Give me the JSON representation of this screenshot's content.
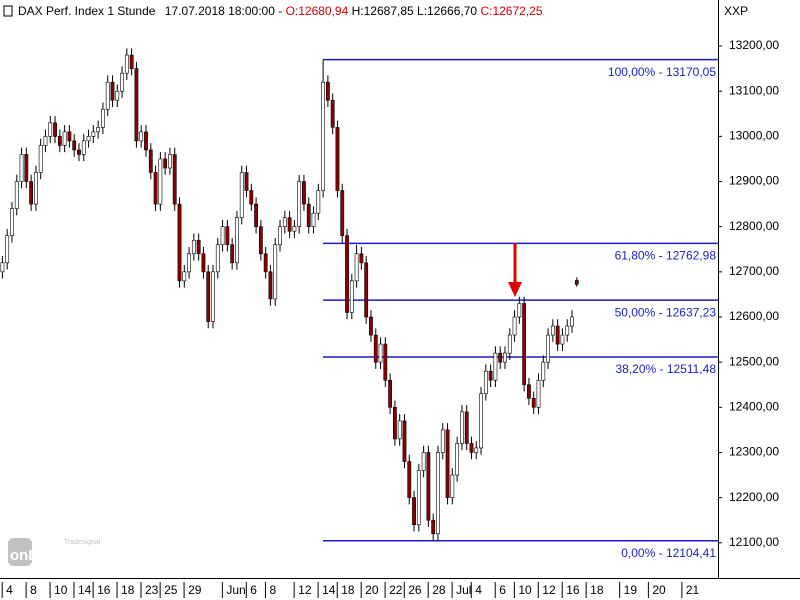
{
  "chart_data": {
    "type": "candlestick",
    "header": {
      "name": "DAX Perf. Index 1 Stunde",
      "datetime": "17.07.2018 18:00:00",
      "separator": "-",
      "open": "O:12680,94",
      "high": "H:12687,85",
      "low": "L:12666,70",
      "close": "C:12672,25"
    },
    "symbol": "XXP",
    "logo": {
      "brand": "Tradesignal",
      "text": "onLine"
    },
    "up_color": "#ffffff",
    "down_color": "#8b0000",
    "fib_color": "#1c1cc8",
    "categories": [
      null,
      "4",
      null,
      null,
      null,
      null,
      "8",
      null,
      null,
      null,
      null,
      "10",
      null,
      null,
      null,
      null,
      "14",
      null,
      null,
      null,
      "16",
      null,
      null,
      null,
      null,
      "18",
      null,
      null,
      null,
      null,
      "23",
      null,
      null,
      null,
      "25",
      null,
      null,
      null,
      null,
      "29",
      null,
      null,
      null,
      null,
      null,
      null,
      null,
      "Jun",
      null,
      null,
      null,
      null,
      "6",
      null,
      null,
      null,
      "8",
      null,
      null,
      null,
      null,
      null,
      "12",
      null,
      null,
      null,
      null,
      "14",
      null,
      null,
      null,
      "18",
      null,
      null,
      null,
      null,
      "20",
      null,
      null,
      null,
      null,
      "22",
      null,
      null,
      null,
      "26",
      null,
      null,
      null,
      null,
      "28",
      null,
      null,
      null,
      null,
      "Jul",
      null,
      null,
      null,
      "4",
      null,
      null,
      null,
      null,
      "6",
      null,
      null,
      null,
      "10",
      null,
      null,
      null,
      null,
      "12",
      null,
      null,
      null,
      null,
      "16",
      null,
      null,
      null,
      null,
      "18",
      null,
      null,
      null,
      null,
      null,
      null,
      "19",
      null,
      null,
      null,
      null,
      null,
      "20",
      null,
      null,
      null,
      null,
      null,
      null,
      "21",
      null,
      null,
      null,
      null,
      null,
      null
    ],
    "ohlc": [
      [
        12700,
        12735,
        12685,
        12720
      ],
      [
        12720,
        12795,
        12705,
        12780
      ],
      [
        12780,
        12855,
        12765,
        12840
      ],
      [
        12840,
        12915,
        12825,
        12900
      ],
      [
        12900,
        12975,
        12885,
        12960
      ],
      [
        12960,
        12975,
        12885,
        12900
      ],
      [
        12900,
        12915,
        12835,
        12850
      ],
      [
        12850,
        12935,
        12835,
        12920
      ],
      [
        12920,
        12995,
        12905,
        12980
      ],
      [
        12980,
        13015,
        12965,
        13000
      ],
      [
        13000,
        13045,
        12985,
        13030
      ],
      [
        13030,
        13045,
        12985,
        13000
      ],
      [
        13000,
        13015,
        12965,
        12980
      ],
      [
        12980,
        13025,
        12965,
        13010
      ],
      [
        13010,
        13025,
        12975,
        12990
      ],
      [
        12990,
        13005,
        12955,
        12970
      ],
      [
        12970,
        12985,
        12945,
        12960
      ],
      [
        12960,
        13005,
        12945,
        12990
      ],
      [
        12990,
        13015,
        12975,
        13000
      ],
      [
        13000,
        13025,
        12985,
        13010
      ],
      [
        13010,
        13035,
        12995,
        13020
      ],
      [
        13020,
        13075,
        13005,
        13060
      ],
      [
        13060,
        13135,
        13045,
        13120
      ],
      [
        13120,
        13135,
        13065,
        13080
      ],
      [
        13080,
        13115,
        13065,
        13100
      ],
      [
        13100,
        13155,
        13085,
        13140
      ],
      [
        13140,
        13195,
        13125,
        13180
      ],
      [
        13180,
        13195,
        13135,
        13150
      ],
      [
        13150,
        13165,
        12975,
        12990
      ],
      [
        12990,
        13025,
        12975,
        13010
      ],
      [
        13010,
        13025,
        12955,
        12970
      ],
      [
        12970,
        12985,
        12905,
        12920
      ],
      [
        12920,
        12935,
        12835,
        12850
      ],
      [
        12850,
        12965,
        12835,
        12950
      ],
      [
        12950,
        12965,
        12915,
        12930
      ],
      [
        12930,
        12975,
        12915,
        12960
      ],
      [
        12960,
        12975,
        12835,
        12850
      ],
      [
        12850,
        12865,
        12665,
        12680
      ],
      [
        12680,
        12715,
        12665,
        12700
      ],
      [
        12700,
        12755,
        12685,
        12740
      ],
      [
        12740,
        12785,
        12725,
        12770
      ],
      [
        12770,
        12785,
        12725,
        12740
      ],
      [
        12740,
        12755,
        12685,
        12700
      ],
      [
        12700,
        12715,
        12575,
        12590
      ],
      [
        12590,
        12715,
        12575,
        12700
      ],
      [
        12700,
        12775,
        12685,
        12760
      ],
      [
        12760,
        12815,
        12745,
        12800
      ],
      [
        12800,
        12815,
        12745,
        12760
      ],
      [
        12760,
        12775,
        12705,
        12720
      ],
      [
        12720,
        12835,
        12705,
        12820
      ],
      [
        12820,
        12935,
        12805,
        12920
      ],
      [
        12920,
        12935,
        12865,
        12880
      ],
      [
        12880,
        12895,
        12835,
        12850
      ],
      [
        12850,
        12865,
        12785,
        12800
      ],
      [
        12800,
        12815,
        12725,
        12740
      ],
      [
        12740,
        12755,
        12685,
        12700
      ],
      [
        12700,
        12715,
        12625,
        12640
      ],
      [
        12640,
        12775,
        12625,
        12760
      ],
      [
        12760,
        12815,
        12745,
        12800
      ],
      [
        12800,
        12835,
        12785,
        12820
      ],
      [
        12820,
        12835,
        12775,
        12790
      ],
      [
        12790,
        12815,
        12775,
        12800
      ],
      [
        12800,
        12915,
        12785,
        12900
      ],
      [
        12900,
        12915,
        12835,
        12850
      ],
      [
        12850,
        12865,
        12785,
        12800
      ],
      [
        12800,
        12845,
        12785,
        12830
      ],
      [
        12830,
        12895,
        12815,
        12880
      ],
      [
        12880,
        13170,
        12865,
        13120
      ],
      [
        13120,
        13135,
        13065,
        13080
      ],
      [
        13080,
        13095,
        13005,
        13020
      ],
      [
        13020,
        13035,
        12865,
        12880
      ],
      [
        12880,
        12895,
        12765,
        12780
      ],
      [
        12780,
        12795,
        12595,
        12610
      ],
      [
        12610,
        12695,
        12595,
        12680
      ],
      [
        12680,
        12760,
        12665,
        12740
      ],
      [
        12740,
        12755,
        12705,
        12720
      ],
      [
        12720,
        12735,
        12585,
        12600
      ],
      [
        12600,
        12615,
        12545,
        12560
      ],
      [
        12560,
        12575,
        12485,
        12500
      ],
      [
        12500,
        12555,
        12485,
        12540
      ],
      [
        12540,
        12555,
        12445,
        12460
      ],
      [
        12460,
        12475,
        12385,
        12400
      ],
      [
        12400,
        12415,
        12315,
        12330
      ],
      [
        12330,
        12385,
        12315,
        12370
      ],
      [
        12370,
        12385,
        12265,
        12280
      ],
      [
        12280,
        12295,
        12185,
        12200
      ],
      [
        12200,
        12215,
        12125,
        12140
      ],
      [
        12140,
        12275,
        12125,
        12260
      ],
      [
        12260,
        12315,
        12245,
        12300
      ],
      [
        12300,
        12315,
        12135,
        12150
      ],
      [
        12150,
        12165,
        12105,
        12120
      ],
      [
        12120,
        12315,
        12105,
        12300
      ],
      [
        12300,
        12365,
        12285,
        12350
      ],
      [
        12350,
        12365,
        12185,
        12200
      ],
      [
        12200,
        12265,
        12185,
        12250
      ],
      [
        12250,
        12335,
        12235,
        12320
      ],
      [
        12320,
        12405,
        12305,
        12390
      ],
      [
        12390,
        12405,
        12305,
        12320
      ],
      [
        12320,
        12335,
        12285,
        12300
      ],
      [
        12300,
        12325,
        12285,
        12310
      ],
      [
        12310,
        12445,
        12295,
        12430
      ],
      [
        12430,
        12495,
        12415,
        12480
      ],
      [
        12480,
        12495,
        12445,
        12460
      ],
      [
        12460,
        12535,
        12445,
        12520
      ],
      [
        12520,
        12535,
        12485,
        12500
      ],
      [
        12500,
        12535,
        12485,
        12520
      ],
      [
        12520,
        12575,
        12505,
        12560
      ],
      [
        12560,
        12615,
        12545,
        12600
      ],
      [
        12600,
        12645,
        12585,
        12630
      ],
      [
        12630,
        12645,
        12435,
        12450
      ],
      [
        12450,
        12465,
        12405,
        12420
      ],
      [
        12420,
        12435,
        12385,
        12400
      ],
      [
        12400,
        12475,
        12385,
        12460
      ],
      [
        12460,
        12515,
        12445,
        12500
      ],
      [
        12500,
        12575,
        12485,
        12560
      ],
      [
        12560,
        12595,
        12545,
        12580
      ],
      [
        12580,
        12595,
        12525,
        12540
      ],
      [
        12540,
        12575,
        12525,
        12560
      ],
      [
        12560,
        12595,
        12545,
        12580
      ],
      [
        12580,
        12615,
        12565,
        12600
      ],
      [
        12680.94,
        12687.85,
        12666.7,
        12672.25
      ],
      null,
      null,
      null,
      null,
      null,
      null,
      null,
      null,
      null,
      null,
      null,
      null,
      null,
      null,
      null,
      null,
      null,
      null,
      null,
      null,
      null,
      null,
      null,
      null,
      null,
      null,
      null,
      null,
      null
    ],
    "fib_levels": [
      {
        "label": "100,00% - 13170,05",
        "value": 13170.05
      },
      {
        "label": "61,80% - 12762,98",
        "value": 12762.98
      },
      {
        "label": "50,00% - 12637,23",
        "value": 12637.23
      },
      {
        "label": "38,20% - 12511,48",
        "value": 12511.48
      },
      {
        "label": "0,00% - 12104,41",
        "value": 12104.41
      }
    ],
    "ylim": [
      12022,
      13302
    ],
    "yticks": [
      {
        "value": 12100,
        "label": "12100,00"
      },
      {
        "value": 12200,
        "label": "12200,00"
      },
      {
        "value": 12300,
        "label": "12300,00"
      },
      {
        "value": 12400,
        "label": "12400,00"
      },
      {
        "value": 12500,
        "label": "12500,00"
      },
      {
        "value": 12600,
        "label": "12600,00"
      },
      {
        "value": 12700,
        "label": "12700,00"
      },
      {
        "value": 12800,
        "label": "12800,00"
      },
      {
        "value": 12900,
        "label": "12900,00"
      },
      {
        "value": 13000,
        "label": "13000,00"
      },
      {
        "value": 13100,
        "label": "13100,00"
      },
      {
        "value": 13200,
        "label": "13200,00"
      }
    ]
  }
}
